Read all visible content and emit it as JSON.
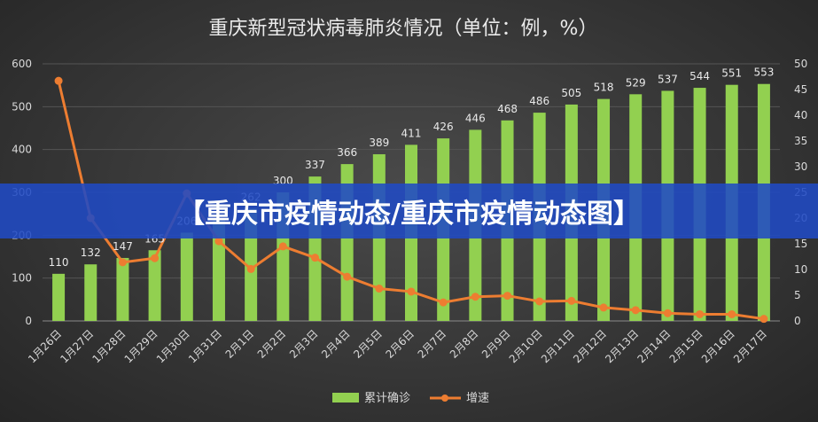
{
  "chart_data": {
    "type": "bar",
    "title": "重庆新型冠状病毒肺炎情况（单位：例，%）",
    "categories": [
      "1月26日",
      "1月27日",
      "1月28日",
      "1月29日",
      "1月30日",
      "1月31日",
      "2月1日",
      "2月2日",
      "2月3日",
      "2月4日",
      "2月5日",
      "2月6日",
      "2月7日",
      "2月8日",
      "2月9日",
      "2月10日",
      "2月11日",
      "2月12日",
      "2月13日",
      "2月14日",
      "2月15日",
      "2月16日",
      "2月17日"
    ],
    "series": [
      {
        "name": "累计确诊",
        "type": "bar",
        "axis": "left",
        "color": "#92d050",
        "values": [
          110,
          132,
          147,
          165,
          206,
          238,
          262,
          300,
          337,
          366,
          389,
          411,
          426,
          446,
          468,
          486,
          505,
          518,
          529,
          537,
          544,
          551,
          553
        ],
        "labels": [
          "110",
          "132",
          "147",
          "165",
          "206",
          "",
          "262",
          "300",
          "337",
          "366",
          "389",
          "411",
          "426",
          "446",
          "468",
          "486",
          "505",
          "518",
          "529",
          "537",
          "544",
          "551",
          "553"
        ]
      },
      {
        "name": "增速",
        "type": "line",
        "axis": "right",
        "color": "#ed7d31",
        "values": [
          46.7,
          20.0,
          11.4,
          12.2,
          24.8,
          15.5,
          10.1,
          14.5,
          12.3,
          8.6,
          6.3,
          5.7,
          3.6,
          4.7,
          4.9,
          3.8,
          3.9,
          2.6,
          2.1,
          1.5,
          1.3,
          1.3,
          0.4
        ]
      }
    ],
    "y_left": {
      "min": 0,
      "max": 600,
      "ticks": [
        "0",
        "100",
        "200",
        "300",
        "400",
        "500",
        "600"
      ]
    },
    "y_right": {
      "min": 0,
      "max": 50,
      "ticks": [
        "0",
        "5",
        "10",
        "15",
        "20",
        "25",
        "30",
        "35",
        "40",
        "45",
        "50"
      ]
    },
    "legend_position": "bottom",
    "grid": true
  },
  "banner": "【重庆市疫情动态/重庆市疫情动态图】"
}
